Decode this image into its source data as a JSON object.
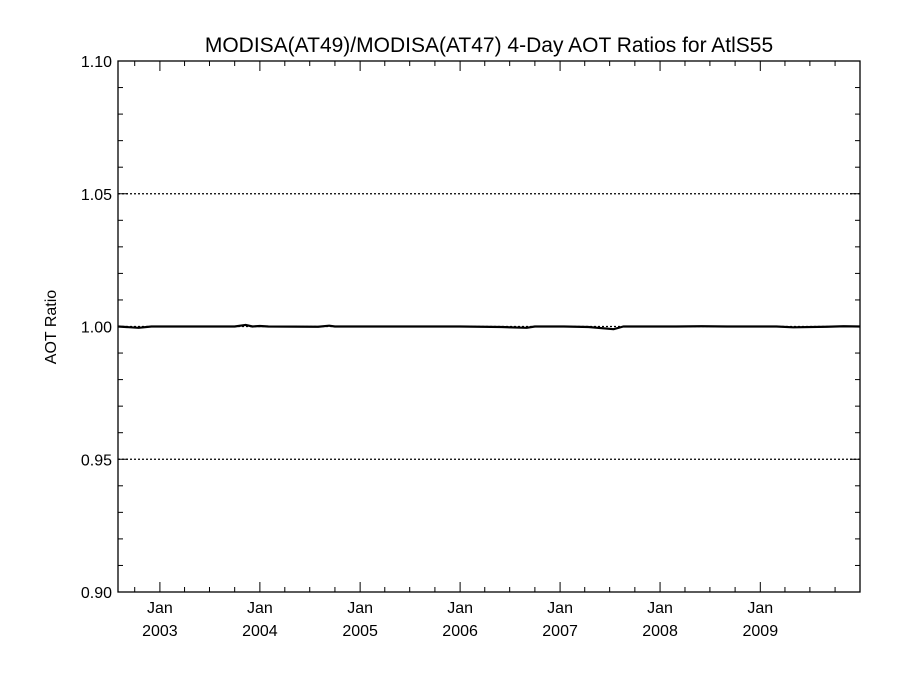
{
  "chart_data": {
    "type": "line",
    "title": "MODISA(AT49)/MODISA(AT47) 4-Day AOT Ratios for AtlS55",
    "xlabel": "",
    "ylabel": "AOT Ratio",
    "ylim": [
      0.9,
      1.1
    ],
    "xlim": [
      "2002-08-01",
      "2009-12-31"
    ],
    "y_ticks": [
      "0.90",
      "0.95",
      "1.00",
      "1.05",
      "1.10"
    ],
    "x_ticks": [
      {
        "month": "Jan",
        "year": "2003",
        "date": "2003-01-01"
      },
      {
        "month": "Jan",
        "year": "2004",
        "date": "2004-01-01"
      },
      {
        "month": "Jan",
        "year": "2005",
        "date": "2005-01-01"
      },
      {
        "month": "Jan",
        "year": "2006",
        "date": "2006-01-01"
      },
      {
        "month": "Jan",
        "year": "2007",
        "date": "2007-01-01"
      },
      {
        "month": "Jan",
        "year": "2008",
        "date": "2008-01-01"
      },
      {
        "month": "Jan",
        "year": "2009",
        "date": "2009-01-01"
      }
    ],
    "gridlines_y": [
      0.95,
      1.0,
      1.05
    ],
    "grid_style": "dotted",
    "series": [
      {
        "color": "#000000",
        "points": [
          {
            "x": "2002-08-01",
            "y": 1.0
          },
          {
            "x": "2002-10-15",
            "y": 0.9995
          },
          {
            "x": "2002-12-01",
            "y": 1.0
          },
          {
            "x": "2003-06-01",
            "y": 1.0
          },
          {
            "x": "2003-10-01",
            "y": 1.0
          },
          {
            "x": "2003-11-10",
            "y": 1.0006
          },
          {
            "x": "2003-12-05",
            "y": 1.0
          },
          {
            "x": "2004-01-01",
            "y": 1.0002
          },
          {
            "x": "2004-02-01",
            "y": 1.0
          },
          {
            "x": "2004-08-01",
            "y": 0.9999
          },
          {
            "x": "2004-09-10",
            "y": 1.0003
          },
          {
            "x": "2004-10-01",
            "y": 1.0
          },
          {
            "x": "2005-06-01",
            "y": 1.0
          },
          {
            "x": "2006-01-01",
            "y": 1.0
          },
          {
            "x": "2006-06-01",
            "y": 0.9998
          },
          {
            "x": "2006-09-01",
            "y": 0.9995
          },
          {
            "x": "2006-10-01",
            "y": 1.0
          },
          {
            "x": "2007-01-15",
            "y": 1.0
          },
          {
            "x": "2007-04-15",
            "y": 0.9998
          },
          {
            "x": "2007-07-15",
            "y": 0.999
          },
          {
            "x": "2007-08-20",
            "y": 1.0
          },
          {
            "x": "2008-03-01",
            "y": 1.0
          },
          {
            "x": "2008-06-01",
            "y": 1.0001
          },
          {
            "x": "2008-09-01",
            "y": 1.0
          },
          {
            "x": "2009-03-01",
            "y": 1.0
          },
          {
            "x": "2009-05-01",
            "y": 0.9997
          },
          {
            "x": "2009-09-01",
            "y": 0.9999
          },
          {
            "x": "2009-11-01",
            "y": 1.0001
          },
          {
            "x": "2009-12-31",
            "y": 1.0
          }
        ]
      }
    ]
  }
}
